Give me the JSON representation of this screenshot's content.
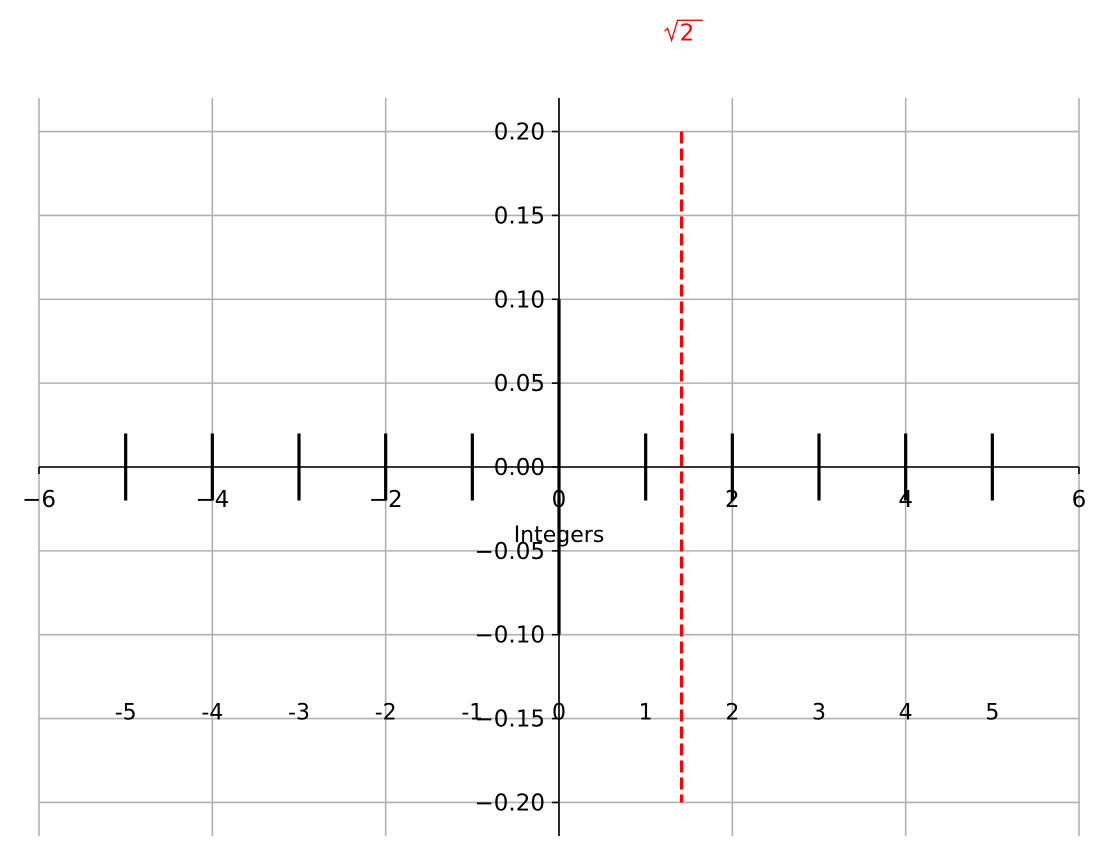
{
  "chart_data": {
    "type": "line",
    "title": "",
    "xlabel": "",
    "ylabel": "",
    "xlim": [
      -6,
      6
    ],
    "ylim": [
      -0.22,
      0.22
    ],
    "grid": true,
    "spines": "centered at origin",
    "x_ticks": [
      {
        "value": -6,
        "label": "−6"
      },
      {
        "value": -4,
        "label": "−4"
      },
      {
        "value": -2,
        "label": "−2"
      },
      {
        "value": 0,
        "label": "0"
      },
      {
        "value": 2,
        "label": "2"
      },
      {
        "value": 4,
        "label": "4"
      },
      {
        "value": 6,
        "label": "6"
      }
    ],
    "y_ticks": [
      {
        "value": 0.2,
        "label": "0.20"
      },
      {
        "value": 0.15,
        "label": "0.15"
      },
      {
        "value": 0.1,
        "label": "0.10"
      },
      {
        "value": 0.05,
        "label": "0.05"
      },
      {
        "value": 0.0,
        "label": "0.00"
      },
      {
        "value": -0.05,
        "label": "−0.05"
      },
      {
        "value": -0.1,
        "label": "−0.10"
      },
      {
        "value": -0.15,
        "label": "−0.15"
      },
      {
        "value": -0.2,
        "label": "−0.20"
      }
    ],
    "integer_marks": [
      {
        "x": -5,
        "y_min": -0.02,
        "y_max": 0.02,
        "label": "-5"
      },
      {
        "x": -4,
        "y_min": -0.02,
        "y_max": 0.02,
        "label": "-4"
      },
      {
        "x": -3,
        "y_min": -0.02,
        "y_max": 0.02,
        "label": "-3"
      },
      {
        "x": -2,
        "y_min": -0.02,
        "y_max": 0.02,
        "label": "-2"
      },
      {
        "x": -1,
        "y_min": -0.02,
        "y_max": 0.02,
        "label": "-1"
      },
      {
        "x": 0,
        "y_min": -0.1,
        "y_max": 0.1,
        "label": "0"
      },
      {
        "x": 1,
        "y_min": -0.02,
        "y_max": 0.02,
        "label": "1"
      },
      {
        "x": 2,
        "y_min": -0.02,
        "y_max": 0.02,
        "label": "2"
      },
      {
        "x": 3,
        "y_min": -0.02,
        "y_max": 0.02,
        "label": "3"
      },
      {
        "x": 4,
        "y_min": -0.02,
        "y_max": 0.02,
        "label": "4"
      },
      {
        "x": 5,
        "y_min": -0.02,
        "y_max": 0.02,
        "label": "5"
      }
    ],
    "integer_label_y": -0.15,
    "reference_line": {
      "x": 1.41421356,
      "y_min": -0.2,
      "y_max": 0.2,
      "style": "dashed",
      "color": "#ff0000",
      "label_radicand": "2",
      "label_y": 0.255
    },
    "annotation": {
      "text": "Integers",
      "x": 0,
      "y": -0.04
    }
  }
}
